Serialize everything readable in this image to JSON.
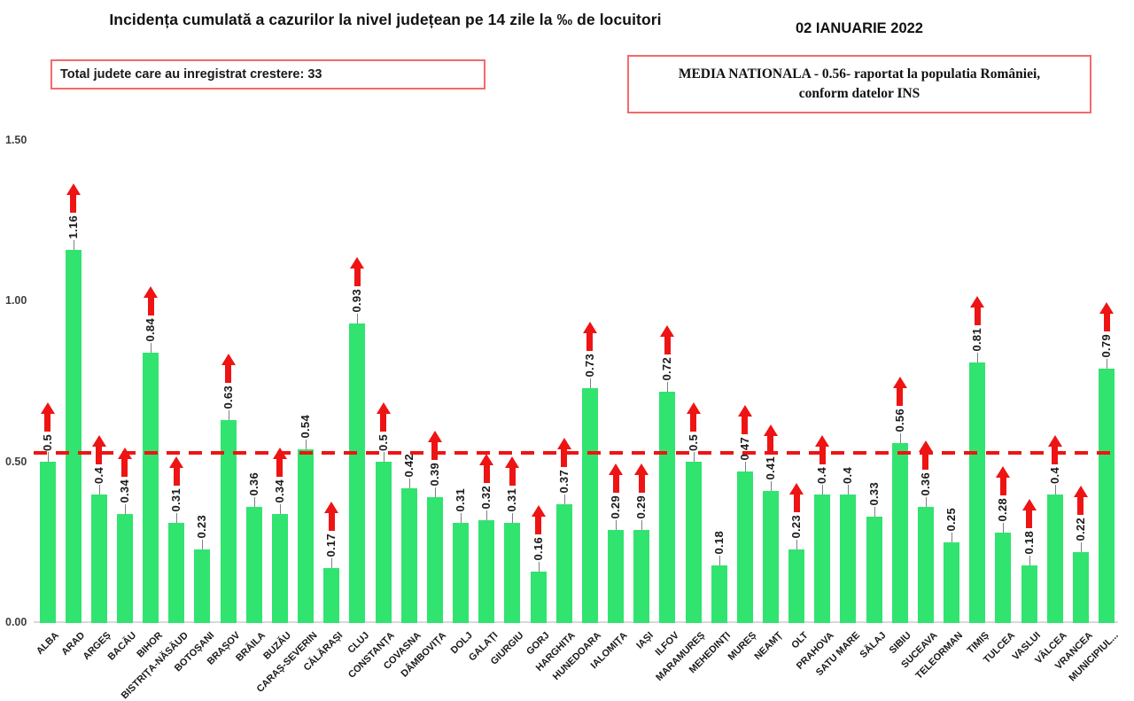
{
  "header": {
    "title": "Incidența cumulată a cazurilor la nivel județean pe 14 zile la ‰ de locuitori",
    "date": "02 IANUARIE 2022"
  },
  "summary_boxes": {
    "increase_total": "Total judete care au inregistrat crestere: 33",
    "national_average_line1": "MEDIA NATIONALA - 0.56- raportat la populatia României,",
    "national_average_line2": "conform datelor INS"
  },
  "chart_data": {
    "type": "bar",
    "title": "Incidența cumulată a cazurilor la nivel județean pe 14 zile la ‰ de locuitori",
    "xlabel": "",
    "ylabel": "",
    "ylim": [
      0,
      1.5
    ],
    "yticks": [
      {
        "value": 0.0,
        "label": "0.00"
      },
      {
        "value": 0.5,
        "label": "0.50"
      },
      {
        "value": 1.0,
        "label": "1.00"
      },
      {
        "value": 1.5,
        "label": "1.50"
      }
    ],
    "grid": false,
    "legend": "none",
    "bar_color": "#30e46f",
    "arrow_color": "#ee1414",
    "reference_line": {
      "value": 0.56,
      "drawn_at": 0.53,
      "color": "#ee1414",
      "style": "dashed"
    },
    "bars": [
      {
        "county": "ALBA",
        "value": 0.5,
        "increase": true
      },
      {
        "county": "ARAD",
        "value": 1.16,
        "increase": true
      },
      {
        "county": "ARGEȘ",
        "value": 0.4,
        "increase": true
      },
      {
        "county": "BACĂU",
        "value": 0.34,
        "increase": true
      },
      {
        "county": "BIHOR",
        "value": 0.84,
        "increase": true
      },
      {
        "county": "BISTRIȚA-NĂSĂUD",
        "value": 0.31,
        "increase": true
      },
      {
        "county": "BOTOȘANI",
        "value": 0.23,
        "increase": false
      },
      {
        "county": "BRAȘOV",
        "value": 0.63,
        "increase": true
      },
      {
        "county": "BRĂILA",
        "value": 0.36,
        "increase": false
      },
      {
        "county": "BUZĂU",
        "value": 0.34,
        "increase": true
      },
      {
        "county": "CARAȘ-SEVERIN",
        "value": 0.54,
        "increase": false
      },
      {
        "county": "CĂLĂRAȘI",
        "value": 0.17,
        "increase": true
      },
      {
        "county": "CLUJ",
        "value": 0.93,
        "increase": true
      },
      {
        "county": "CONSTANȚA",
        "value": 0.5,
        "increase": true
      },
      {
        "county": "COVASNA",
        "value": 0.42,
        "increase": false
      },
      {
        "county": "DÂMBOVIȚA",
        "value": 0.39,
        "increase": true
      },
      {
        "county": "DOLJ",
        "value": 0.31,
        "increase": false
      },
      {
        "county": "GALAȚI",
        "value": 0.32,
        "increase": true
      },
      {
        "county": "GIURGIU",
        "value": 0.31,
        "increase": true
      },
      {
        "county": "GORJ",
        "value": 0.16,
        "increase": true
      },
      {
        "county": "HARGHITA",
        "value": 0.37,
        "increase": true
      },
      {
        "county": "HUNEDOARA",
        "value": 0.73,
        "increase": true
      },
      {
        "county": "IALOMIȚA",
        "value": 0.29,
        "increase": true
      },
      {
        "county": "IAȘI",
        "value": 0.29,
        "increase": true
      },
      {
        "county": "ILFOV",
        "value": 0.72,
        "increase": true
      },
      {
        "county": "MARAMUREȘ",
        "value": 0.5,
        "increase": true
      },
      {
        "county": "MEHEDINȚI",
        "value": 0.18,
        "increase": false
      },
      {
        "county": "MUREȘ",
        "value": 0.47,
        "increase": true
      },
      {
        "county": "NEAMȚ",
        "value": 0.41,
        "increase": true
      },
      {
        "county": "OLT",
        "value": 0.23,
        "increase": true
      },
      {
        "county": "PRAHOVA",
        "value": 0.4,
        "increase": true
      },
      {
        "county": "SATU MARE",
        "value": 0.4,
        "increase": false
      },
      {
        "county": "SĂLAJ",
        "value": 0.33,
        "increase": false
      },
      {
        "county": "SIBIU",
        "value": 0.56,
        "increase": true
      },
      {
        "county": "SUCEAVA",
        "value": 0.36,
        "increase": true
      },
      {
        "county": "TELEORMAN",
        "value": 0.25,
        "increase": false
      },
      {
        "county": "TIMIȘ",
        "value": 0.81,
        "increase": true
      },
      {
        "county": "TULCEA",
        "value": 0.28,
        "increase": true
      },
      {
        "county": "VASLUI",
        "value": 0.18,
        "increase": true
      },
      {
        "county": "VÂLCEA",
        "value": 0.4,
        "increase": true
      },
      {
        "county": "VRANCEA",
        "value": 0.22,
        "increase": true
      },
      {
        "county": "MUNICIPIUL...",
        "value": 0.79,
        "increase": true
      }
    ]
  }
}
